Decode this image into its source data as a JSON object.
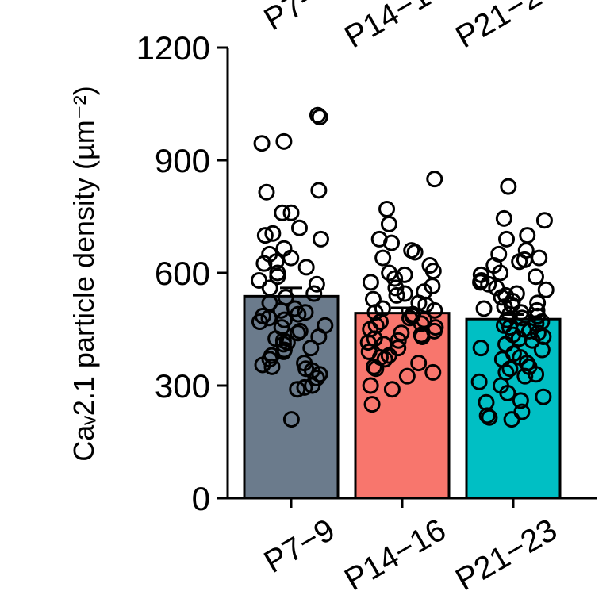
{
  "chart_data": {
    "type": "bar",
    "categories": [
      "P7−9",
      "P14−16",
      "P21−23"
    ],
    "values": [
      538,
      493,
      477
    ],
    "errors": [
      22,
      14,
      12
    ],
    "ylim": [
      0,
      1200
    ],
    "yticks": [
      0,
      300,
      600,
      900,
      1200
    ],
    "ylabel": "Caᵥ2.1 particle density (µm⁻²)",
    "colors": [
      "#6b7b8c",
      "#f8766d",
      "#00bfc4"
    ],
    "points": [
      [
        1020,
        1015,
        945,
        950,
        820,
        815,
        760,
        760,
        720,
        705,
        700,
        690,
        665,
        650,
        640,
        630,
        625,
        615,
        600,
        590,
        580,
        570,
        560,
        545,
        535,
        520,
        505,
        500,
        495,
        490,
        485,
        480,
        475,
        470,
        460,
        455,
        445,
        440,
        430,
        425,
        420,
        415,
        410,
        400,
        395,
        390,
        380,
        370,
        360,
        355,
        350,
        345,
        340,
        330,
        320,
        300,
        295,
        290,
        210
      ],
      [
        850,
        770,
        730,
        690,
        680,
        660,
        655,
        640,
        620,
        605,
        600,
        595,
        585,
        575,
        565,
        560,
        550,
        545,
        540,
        530,
        520,
        515,
        505,
        500,
        495,
        490,
        485,
        480,
        475,
        470,
        465,
        460,
        455,
        450,
        445,
        440,
        435,
        430,
        425,
        420,
        415,
        410,
        400,
        390,
        380,
        375,
        370,
        360,
        350,
        345,
        335,
        325,
        300,
        290,
        250
      ],
      [
        830,
        745,
        740,
        700,
        690,
        660,
        650,
        640,
        635,
        630,
        620,
        600,
        595,
        590,
        580,
        575,
        570,
        560,
        555,
        545,
        540,
        535,
        525,
        520,
        515,
        510,
        505,
        500,
        495,
        490,
        485,
        480,
        475,
        470,
        465,
        460,
        455,
        450,
        445,
        440,
        435,
        430,
        425,
        420,
        410,
        400,
        395,
        385,
        375,
        370,
        360,
        350,
        345,
        335,
        330,
        325,
        310,
        300,
        280,
        270,
        260,
        255,
        230,
        220,
        215,
        210
      ]
    ]
  }
}
